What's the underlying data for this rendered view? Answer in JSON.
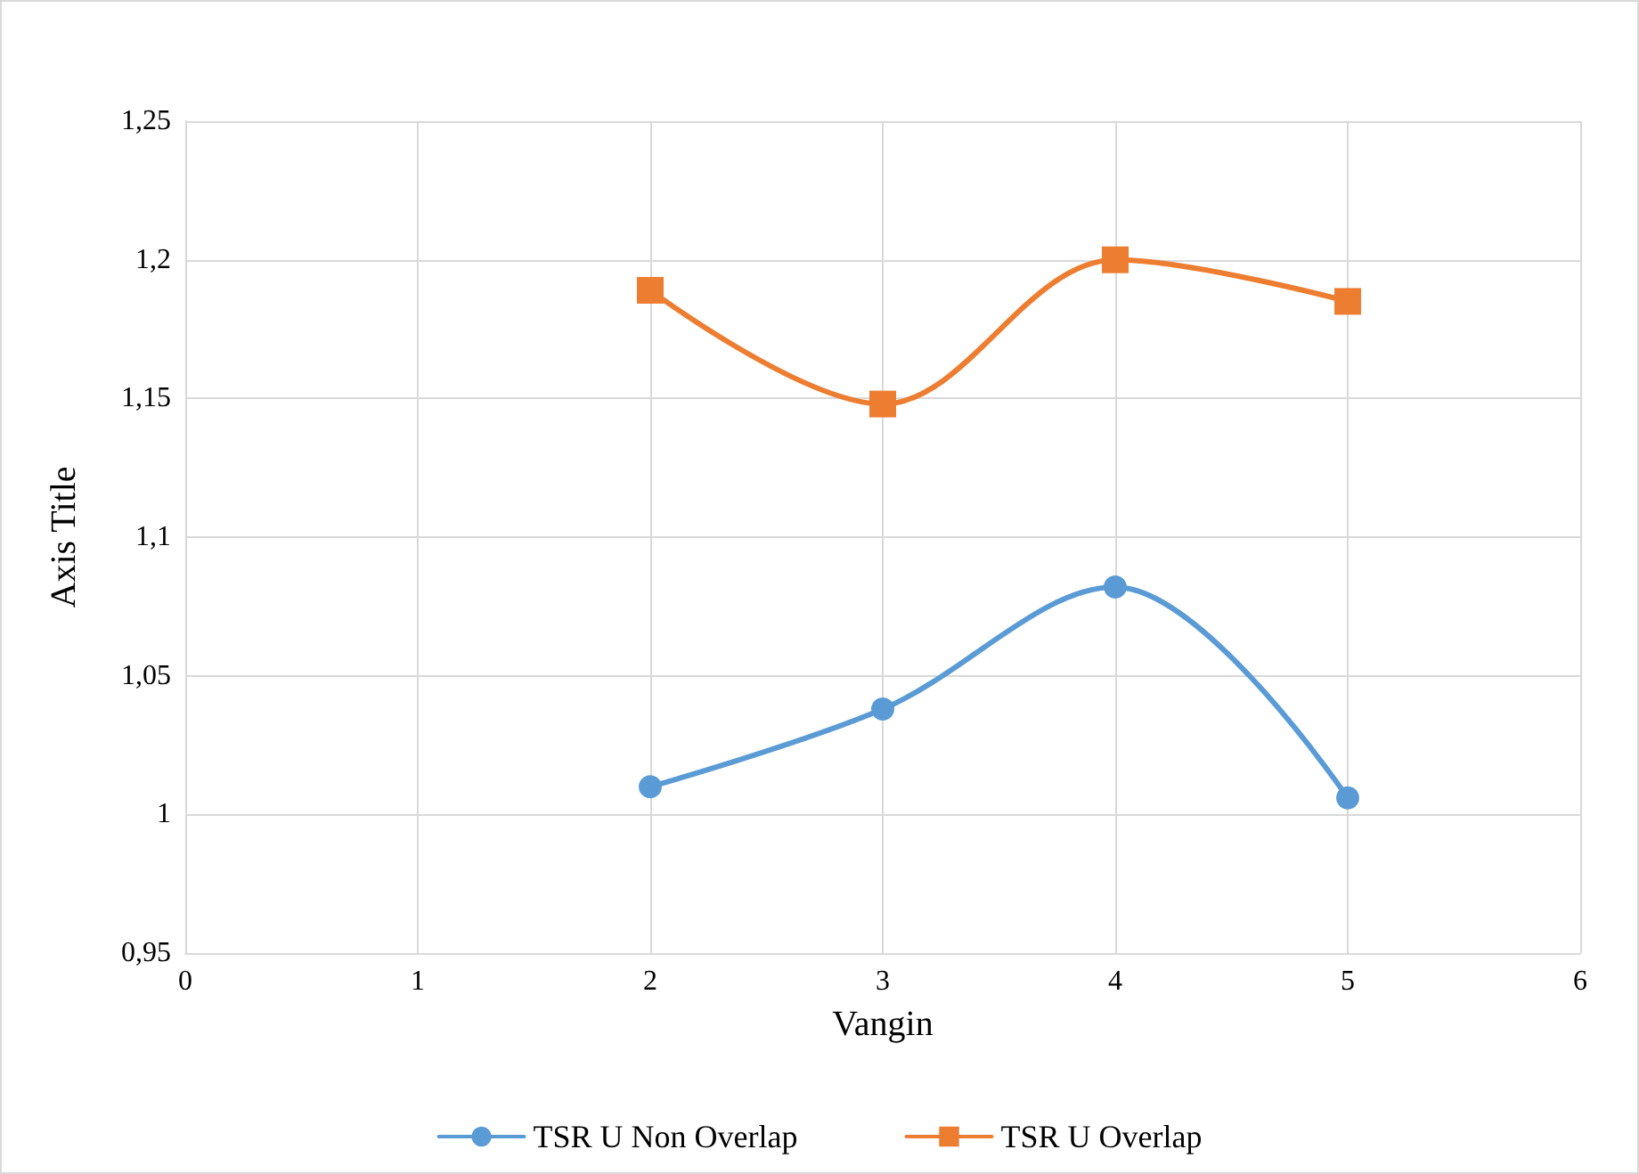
{
  "chart_data": {
    "type": "line",
    "xlabel": "Vangin",
    "ylabel": "Axis Title",
    "x": [
      2,
      3,
      4,
      5
    ],
    "series": [
      {
        "name": "TSR U Non Overlap",
        "color": "#5b9bd5",
        "marker": "circle",
        "values": [
          1.01,
          1.038,
          1.082,
          1.006
        ]
      },
      {
        "name": "TSR U Overlap",
        "color": "#ed7d31",
        "marker": "square",
        "values": [
          1.189,
          1.148,
          1.2,
          1.185
        ]
      }
    ],
    "xlim": [
      0,
      6
    ],
    "xticks": [
      0,
      1,
      2,
      3,
      4,
      5,
      6
    ],
    "ylim": [
      0.95,
      1.25
    ],
    "yticks": [
      {
        "value": 0.95,
        "label": "0,95"
      },
      {
        "value": 1,
        "label": "1"
      },
      {
        "value": 1.05,
        "label": "1,05"
      },
      {
        "value": 1.1,
        "label": "1,1"
      },
      {
        "value": 1.15,
        "label": "1,15"
      },
      {
        "value": 1.2,
        "label": "1,2"
      },
      {
        "value": 1.25,
        "label": "1,25"
      }
    ],
    "grid": true,
    "legend": "bottom",
    "line_style": "solid"
  }
}
